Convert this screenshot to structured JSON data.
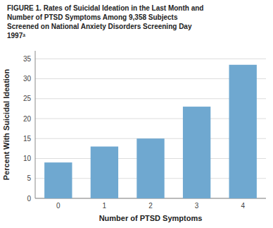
{
  "chart_data": {
    "type": "bar",
    "title": "FIGURE 1. Rates of Suicidal Ideation in the Last Month and\nNumber of PTSD Symptoms Among 9,358 Subjects\nScreened on National Anxiety Disorders Screening Day\n1997ᵃ",
    "categories": [
      "0",
      "1",
      "2",
      "3",
      "4"
    ],
    "values": [
      9.0,
      13.0,
      15.0,
      23.0,
      33.5
    ],
    "color": "#6fa8d0",
    "x_label": "Number of PTSD Symptoms",
    "y_label": "Percent With Suicidal Ideation",
    "ylim": [
      0,
      37
    ],
    "yticks": [
      0,
      5,
      10,
      15,
      20,
      25,
      30,
      35
    ],
    "grid": true
  }
}
